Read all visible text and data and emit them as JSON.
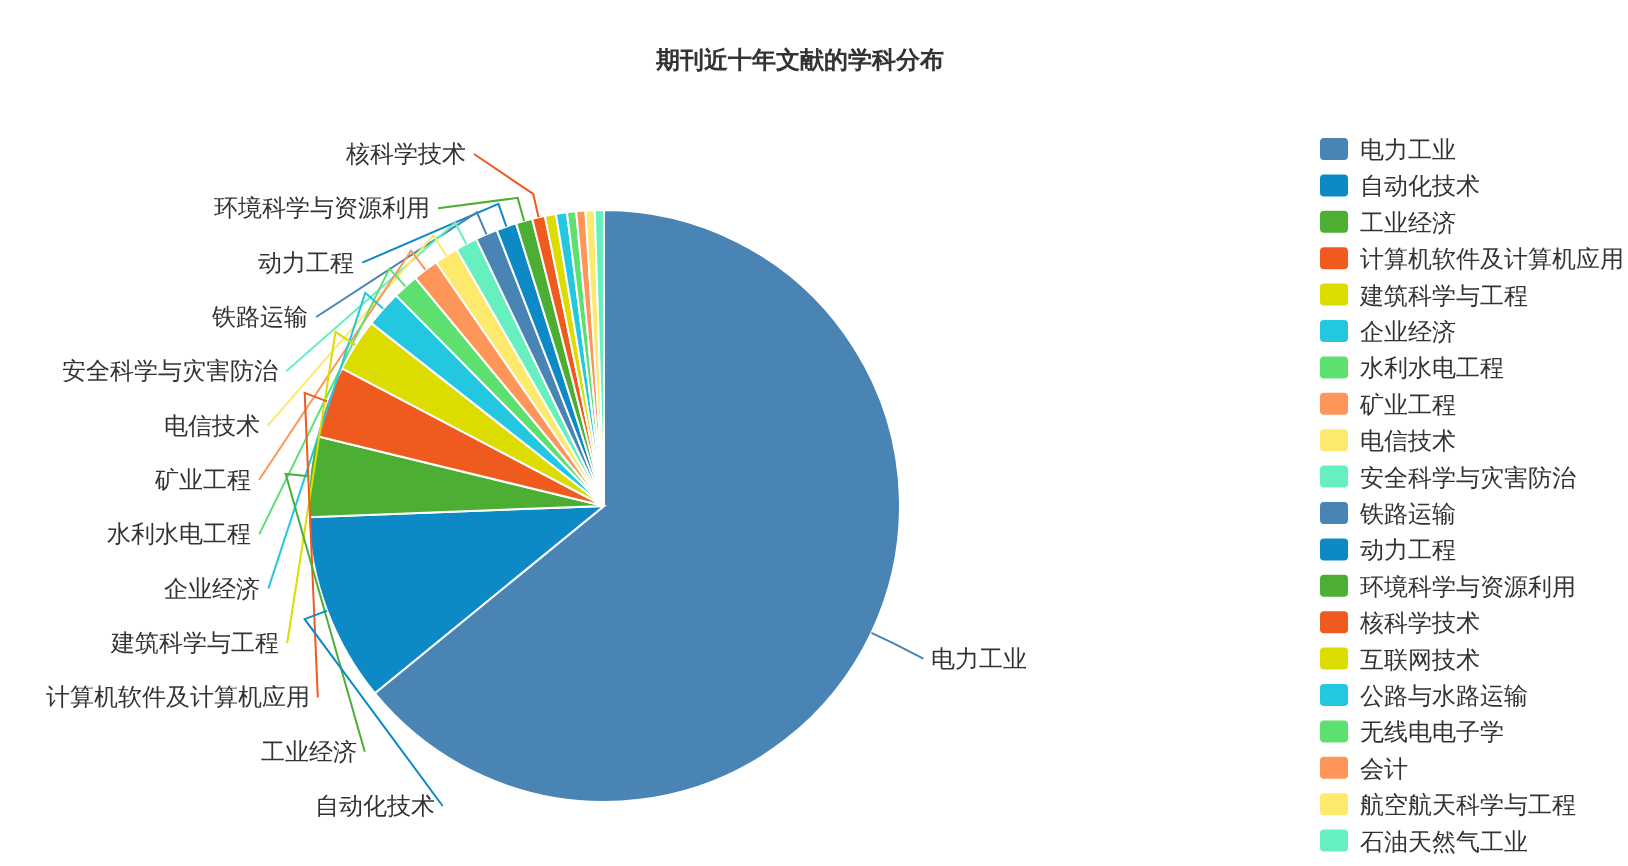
{
  "chart_data": {
    "type": "pie",
    "title": "期刊近十年文献的学科分布",
    "legend": "right",
    "categories": [
      "电力工业",
      "自动化技术",
      "工业经济",
      "计算机软件及计算机应用",
      "建筑科学与工程",
      "企业经济",
      "水利水电工程",
      "矿业工程",
      "电信技术",
      "安全科学与灾害防治",
      "铁路运输",
      "动力工程",
      "环境科学与资源利用",
      "核科学技术",
      "互联网技术",
      "公路与水路运输",
      "无线电电子学",
      "会计",
      "航空航天科学与工程",
      "石油天然气工业"
    ],
    "values": [
      64.1,
      10.3,
      4.4,
      3.9,
      2.9,
      2.0,
      1.4,
      1.4,
      1.3,
      1.2,
      1.2,
      1.1,
      0.9,
      0.7,
      0.6,
      0.6,
      0.5,
      0.5,
      0.5,
      0.5
    ],
    "colors": [
      "#4a84b4",
      "#0d8ac6",
      "#4caf34",
      "#ef5a1e",
      "#dcdc00",
      "#23c8e0",
      "#5de070",
      "#fd9658",
      "#fde96c",
      "#66f0c0",
      "#4a84b4",
      "#0d8ac6",
      "#4caf34",
      "#ef5a1e",
      "#dcdc00",
      "#23c8e0",
      "#5de070",
      "#fd9658",
      "#fde96c",
      "#66f0c0"
    ]
  }
}
